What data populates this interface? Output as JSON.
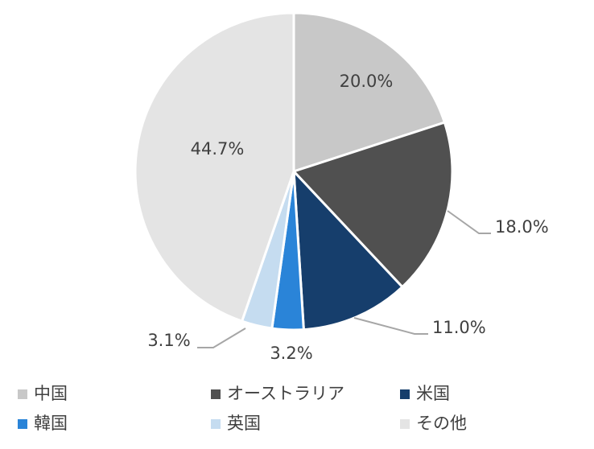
{
  "chart_data": {
    "type": "pie",
    "categories": [
      "中国",
      "オーストラリア",
      "米国",
      "韓国",
      "英国",
      "その他"
    ],
    "values": [
      20.0,
      18.0,
      11.0,
      3.2,
      3.1,
      44.7
    ],
    "value_labels": [
      "20.0%",
      "18.0%",
      "11.0%",
      "3.2%",
      "3.1%",
      "44.7%"
    ],
    "colors": [
      "#c8c8c8",
      "#505050",
      "#163e6c",
      "#2a84d8",
      "#c5dcf0",
      "#e4e4e4"
    ],
    "legend": "bottom"
  }
}
